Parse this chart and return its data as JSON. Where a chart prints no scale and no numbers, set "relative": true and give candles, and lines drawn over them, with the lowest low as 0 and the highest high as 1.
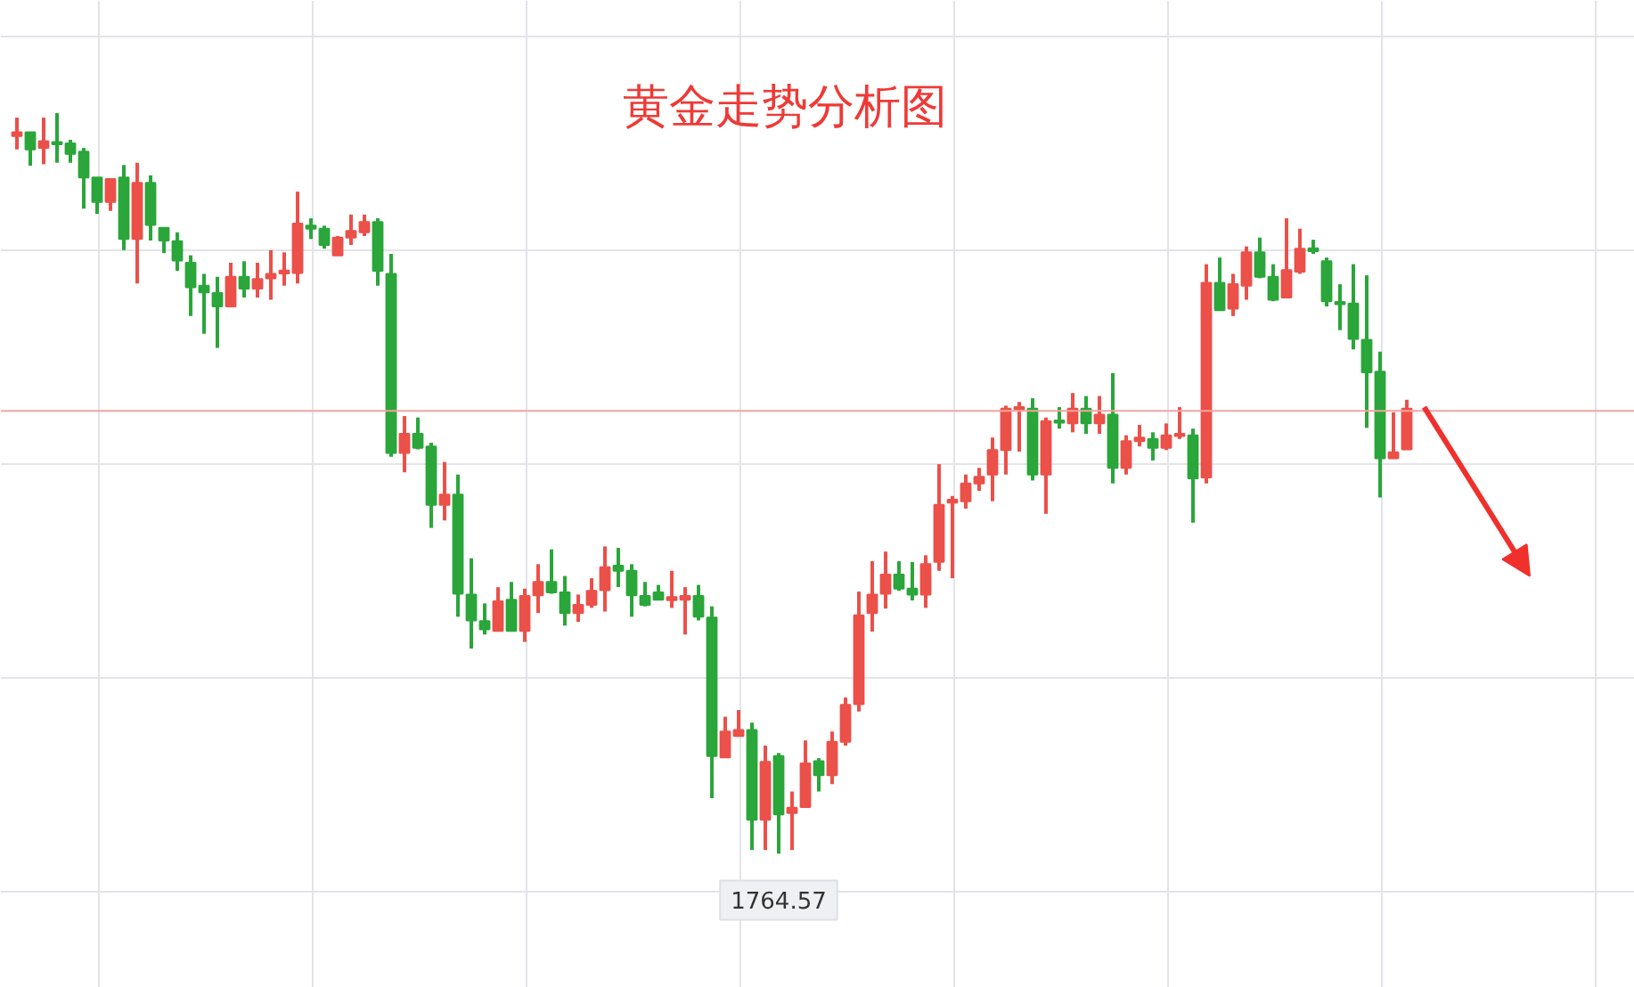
{
  "chart_data": {
    "type": "candlestick",
    "title": "黄金走势分析图",
    "relative": true,
    "grid": true,
    "categories": [
      null,
      null,
      null,
      null,
      null,
      null,
      null,
      null,
      null,
      null,
      null,
      null,
      null,
      null,
      null,
      null,
      null,
      null,
      null,
      null,
      null,
      null,
      null,
      null,
      null,
      null,
      null,
      null,
      null,
      null,
      null,
      null,
      null,
      null,
      null,
      null,
      null,
      null,
      null,
      null,
      null,
      null,
      null,
      null,
      null,
      null,
      null,
      null,
      null,
      null,
      null,
      null,
      null,
      null,
      null,
      null,
      null,
      null,
      null,
      null,
      null,
      null,
      null,
      null,
      null,
      null,
      null,
      null,
      null,
      null,
      null,
      null,
      null,
      null,
      null,
      null,
      null,
      null,
      null,
      null,
      null,
      null,
      null,
      null,
      null,
      null,
      null,
      null,
      null,
      null,
      null,
      null,
      null,
      null,
      null,
      null,
      null,
      null,
      null,
      null,
      null,
      null,
      null,
      null,
      null
    ],
    "ohlc": [
      [
        0.969,
        0.994,
        0.951,
        0.974
      ],
      [
        0.974,
        0.974,
        0.929,
        0.951
      ],
      [
        0.953,
        0.994,
        0.931,
        0.962
      ],
      [
        0.961,
        1.0,
        0.933,
        0.959
      ],
      [
        0.959,
        0.964,
        0.933,
        0.945
      ],
      [
        0.948,
        0.953,
        0.871,
        0.913
      ],
      [
        0.913,
        0.913,
        0.864,
        0.88
      ],
      [
        0.88,
        0.911,
        0.868,
        0.911
      ],
      [
        0.913,
        0.93,
        0.815,
        0.83
      ],
      [
        0.83,
        0.933,
        0.77,
        0.906
      ],
      [
        0.906,
        0.916,
        0.828,
        0.849
      ],
      [
        0.845,
        0.845,
        0.811,
        0.828
      ],
      [
        0.827,
        0.839,
        0.787,
        0.801
      ],
      [
        0.798,
        0.808,
        0.726,
        0.765
      ],
      [
        0.767,
        0.783,
        0.702,
        0.758
      ],
      [
        0.757,
        0.779,
        0.683,
        0.739
      ],
      [
        0.739,
        0.798,
        0.739,
        0.779
      ],
      [
        0.779,
        0.8,
        0.751,
        0.763
      ],
      [
        0.763,
        0.798,
        0.751,
        0.776
      ],
      [
        0.777,
        0.815,
        0.748,
        0.783
      ],
      [
        0.785,
        0.812,
        0.767,
        0.786
      ],
      [
        0.784,
        0.894,
        0.77,
        0.851
      ],
      [
        0.848,
        0.858,
        0.83,
        0.844
      ],
      [
        0.844,
        0.848,
        0.817,
        0.822
      ],
      [
        0.808,
        0.834,
        0.808,
        0.832
      ],
      [
        0.832,
        0.863,
        0.822,
        0.841
      ],
      [
        0.839,
        0.863,
        0.834,
        0.853
      ],
      [
        0.853,
        0.858,
        0.767,
        0.787
      ],
      [
        0.783,
        0.81,
        0.536,
        0.541
      ],
      [
        0.541,
        0.591,
        0.515,
        0.567
      ],
      [
        0.567,
        0.589,
        0.546,
        0.548
      ],
      [
        0.55,
        0.555,
        0.44,
        0.471
      ],
      [
        0.471,
        0.529,
        0.45,
        0.485
      ],
      [
        0.485,
        0.512,
        0.32,
        0.351
      ],
      [
        0.35,
        0.399,
        0.277,
        0.315
      ],
      [
        0.314,
        0.338,
        0.296,
        0.303
      ],
      [
        0.301,
        0.36,
        0.301,
        0.341
      ],
      [
        0.343,
        0.367,
        0.301,
        0.301
      ],
      [
        0.301,
        0.358,
        0.286,
        0.348
      ],
      [
        0.349,
        0.391,
        0.325,
        0.367
      ],
      [
        0.367,
        0.411,
        0.351,
        0.353
      ],
      [
        0.353,
        0.375,
        0.308,
        0.325
      ],
      [
        0.325,
        0.35,
        0.313,
        0.336
      ],
      [
        0.336,
        0.372,
        0.332,
        0.355
      ],
      [
        0.356,
        0.415,
        0.327,
        0.387
      ],
      [
        0.389,
        0.413,
        0.36,
        0.382
      ],
      [
        0.382,
        0.391,
        0.32,
        0.349
      ],
      [
        0.348,
        0.367,
        0.334,
        0.336
      ],
      [
        0.353,
        0.363,
        0.343,
        0.343
      ],
      [
        0.344,
        0.382,
        0.332,
        0.345
      ],
      [
        0.343,
        0.36,
        0.296,
        0.348
      ],
      [
        0.348,
        0.363,
        0.315,
        0.32
      ],
      [
        0.319,
        0.334,
        0.075,
        0.132
      ],
      [
        0.13,
        0.185,
        0.13,
        0.165
      ],
      [
        0.159,
        0.194,
        0.159,
        0.167
      ],
      [
        0.167,
        0.177,
        0.005,
        0.046
      ],
      [
        0.046,
        0.146,
        0.005,
        0.124
      ],
      [
        0.132,
        0.136,
        0.0,
        0.053
      ],
      [
        0.055,
        0.084,
        0.005,
        0.062
      ],
      [
        0.063,
        0.153,
        0.063,
        0.122
      ],
      [
        0.125,
        0.129,
        0.084,
        0.106
      ],
      [
        0.106,
        0.165,
        0.094,
        0.151
      ],
      [
        0.151,
        0.211,
        0.146,
        0.201
      ],
      [
        0.202,
        0.354,
        0.192,
        0.322
      ],
      [
        0.325,
        0.395,
        0.3,
        0.35
      ],
      [
        0.351,
        0.408,
        0.331,
        0.377
      ],
      [
        0.377,
        0.395,
        0.355,
        0.358
      ],
      [
        0.358,
        0.394,
        0.342,
        0.35
      ],
      [
        0.35,
        0.403,
        0.332,
        0.391
      ],
      [
        0.394,
        0.526,
        0.382,
        0.471
      ],
      [
        0.474,
        0.483,
        0.372,
        0.478
      ],
      [
        0.476,
        0.512,
        0.466,
        0.5
      ],
      [
        0.5,
        0.521,
        0.49,
        0.509
      ],
      [
        0.512,
        0.562,
        0.476,
        0.545
      ],
      [
        0.545,
        0.605,
        0.512,
        0.601
      ],
      [
        0.601,
        0.61,
        0.543,
        0.603
      ],
      [
        0.601,
        0.615,
        0.504,
        0.512
      ],
      [
        0.512,
        0.589,
        0.459,
        0.584
      ],
      [
        0.585,
        0.603,
        0.574,
        0.583
      ],
      [
        0.581,
        0.622,
        0.569,
        0.601
      ],
      [
        0.601,
        0.618,
        0.567,
        0.581
      ],
      [
        0.581,
        0.618,
        0.567,
        0.593
      ],
      [
        0.593,
        0.649,
        0.5,
        0.521
      ],
      [
        0.521,
        0.565,
        0.512,
        0.557
      ],
      [
        0.557,
        0.579,
        0.55,
        0.562
      ],
      [
        0.56,
        0.569,
        0.531,
        0.548
      ],
      [
        0.548,
        0.581,
        0.545,
        0.565
      ],
      [
        0.565,
        0.603,
        0.56,
        0.567
      ],
      [
        0.565,
        0.574,
        0.447,
        0.507
      ],
      [
        0.508,
        0.796,
        0.5,
        0.771
      ],
      [
        0.771,
        0.805,
        0.734,
        0.734
      ],
      [
        0.736,
        0.783,
        0.726,
        0.769
      ],
      [
        0.767,
        0.82,
        0.748,
        0.812
      ],
      [
        0.812,
        0.832,
        0.777,
        0.779
      ],
      [
        0.779,
        0.796,
        0.746,
        0.748
      ],
      [
        0.751,
        0.858,
        0.751,
        0.788
      ],
      [
        0.786,
        0.844,
        0.783,
        0.817
      ],
      [
        0.816,
        0.829,
        0.81,
        0.815
      ],
      [
        0.8,
        0.805,
        0.739,
        0.746
      ],
      [
        0.745,
        0.769,
        0.707,
        0.743
      ],
      [
        0.743,
        0.796,
        0.681,
        0.695
      ],
      [
        0.694,
        0.781,
        0.575,
        0.65
      ],
      [
        0.651,
        0.678,
        0.481,
        0.534
      ],
      [
        0.534,
        0.596,
        0.534,
        0.542
      ],
      [
        0.546,
        0.613,
        0.546,
        0.601
      ]
    ],
    "colors": [
      "#eb5049",
      "#2aa63a",
      "#eb5049",
      "#2aa63a",
      "#2aa63a",
      "#2aa63a",
      "#2aa63a",
      "#eb5049",
      "#2aa63a",
      "#eb5049",
      "#2aa63a",
      "#2aa63a",
      "#2aa63a",
      "#2aa63a",
      "#2aa63a",
      "#2aa63a",
      "#eb5049",
      "#2aa63a",
      "#eb5049",
      "#eb5049",
      "#eb5049",
      "#eb5049",
      "#2aa63a",
      "#2aa63a",
      "#eb5049",
      "#eb5049",
      "#eb5049",
      "#2aa63a",
      "#2aa63a",
      "#eb5049",
      "#2aa63a",
      "#2aa63a",
      "#eb5049",
      "#2aa63a",
      "#2aa63a",
      "#2aa63a",
      "#eb5049",
      "#2aa63a",
      "#eb5049",
      "#eb5049",
      "#2aa63a",
      "#2aa63a",
      "#eb5049",
      "#eb5049",
      "#eb5049",
      "#2aa63a",
      "#2aa63a",
      "#2aa63a",
      "#2aa63a",
      "#eb5049",
      "#eb5049",
      "#2aa63a",
      "#2aa63a",
      "#eb5049",
      "#eb5049",
      "#2aa63a",
      "#eb5049",
      "#2aa63a",
      "#eb5049",
      "#eb5049",
      "#2aa63a",
      "#eb5049",
      "#eb5049",
      "#eb5049",
      "#eb5049",
      "#eb5049",
      "#2aa63a",
      "#2aa63a",
      "#eb5049",
      "#eb5049",
      "#eb5049",
      "#eb5049",
      "#eb5049",
      "#eb5049",
      "#eb5049",
      "#eb5049",
      "#2aa63a",
      "#eb5049",
      "#2aa63a",
      "#eb5049",
      "#2aa63a",
      "#eb5049",
      "#2aa63a",
      "#eb5049",
      "#eb5049",
      "#2aa63a",
      "#eb5049",
      "#eb5049",
      "#2aa63a",
      "#eb5049",
      "#2aa63a",
      "#eb5049",
      "#eb5049",
      "#2aa63a",
      "#2aa63a",
      "#eb5049",
      "#eb5049",
      "#2aa63a",
      "#2aa63a",
      "#2aa63a",
      "#2aa63a",
      "#2aa63a",
      "#2aa63a",
      "#eb5049",
      "#eb5049"
    ],
    "ref_lines": [
      {
        "axis": "y",
        "value": 0.598,
        "color": "#f5a3a0"
      }
    ],
    "annotations": [
      {
        "text": "1764.57",
        "y": 0.0
      }
    ]
  }
}
